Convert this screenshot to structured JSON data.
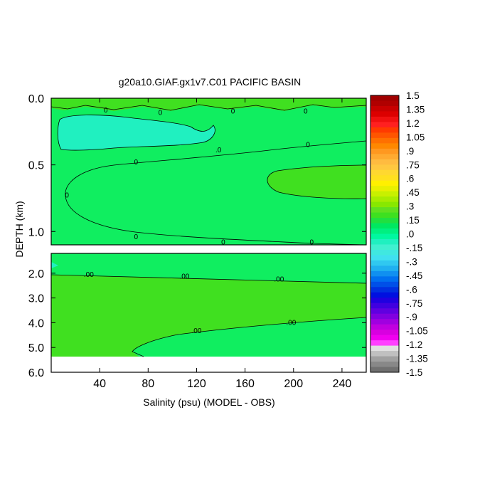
{
  "chart_data": {
    "type": "heatmap",
    "title": "g20a10.GIAF.gx1v7.C01 PACIFIC BASIN",
    "xlabel": "Salinity (psu) (MODEL - OBS)",
    "ylabel": "DEPTH (km)",
    "x_range": [
      0,
      260
    ],
    "x_ticks": [
      "40",
      "80",
      "120",
      "160",
      "200",
      "240"
    ],
    "x_tick_values": [
      40,
      80,
      120,
      160,
      200,
      240
    ],
    "upper_panel": {
      "y_range": [
        0.0,
        1.1
      ],
      "y_ticks": [
        "0.0",
        "0.5",
        "1.0"
      ],
      "y_tick_values": [
        0.0,
        0.5,
        1.0
      ],
      "contour_labels": [
        {
          "text": "0",
          "x": 45,
          "y": 0.09
        },
        {
          "text": "0",
          "x": 90,
          "y": 0.11
        },
        {
          "text": "0",
          "x": 150,
          "y": 0.1
        },
        {
          "text": "0",
          "x": 210,
          "y": 0.1
        },
        {
          "text": "0",
          "x": 212,
          "y": 0.35
        },
        {
          "text": ".0",
          "x": 138,
          "y": 0.39
        },
        {
          "text": "0",
          "x": 70,
          "y": 0.48
        },
        {
          "text": "0",
          "x": 13,
          "y": 0.73
        },
        {
          "text": "0",
          "x": 70,
          "y": 1.04
        },
        {
          "text": "0",
          "x": 142,
          "y": 1.08
        },
        {
          "text": "0",
          "x": 215,
          "y": 1.08
        }
      ]
    },
    "lower_panel": {
      "y_range": [
        1.2,
        6.0
      ],
      "y_ticks": [
        "2.0",
        "3.0",
        "4.0",
        "5.0",
        "6.0"
      ],
      "y_tick_values": [
        2.0,
        3.0,
        4.0,
        5.0,
        6.0
      ],
      "contour_labels": [
        {
          "text": ".00",
          "x": 31,
          "y": 2.06
        },
        {
          "text": ".00",
          "x": 110,
          "y": 2.13
        },
        {
          "text": ".00",
          "x": 188,
          "y": 2.25
        },
        {
          "text": ".00",
          "x": 120,
          "y": 4.34
        },
        {
          "text": ".00",
          "x": 198,
          "y": 4.0
        }
      ]
    },
    "colorbar": {
      "levels": [
        "1.5",
        "1.35",
        "1.2",
        "1.05",
        ".9",
        ".75",
        ".6",
        ".45",
        ".3",
        ".15",
        ".0",
        "-.15",
        "-.3",
        "-.45",
        "-.6",
        "-.75",
        "-.9",
        "-1.05",
        "-1.2",
        "-1.35",
        "-1.5"
      ],
      "colors": [
        "#a00000",
        "#b00000",
        "#c80000",
        "#dc0000",
        "#f01010",
        "#ff2020",
        "#ff3a00",
        "#ff5500",
        "#ff7000",
        "#ff8800",
        "#ff9820",
        "#ffaa30",
        "#ffbb40",
        "#ffc840",
        "#ffd830",
        "#ffe020",
        "#fff000",
        "#e8f000",
        "#c8f000",
        "#a8ec00",
        "#88e800",
        "#60e020",
        "#3ee020",
        "#20e040",
        "#00e860",
        "#00f080",
        "#00f8a0",
        "#20f0c0",
        "#40f0d0",
        "#40e8e0",
        "#40e0f0",
        "#30c8f0",
        "#20b0f0",
        "#1090f0",
        "#0070f0",
        "#0050e8",
        "#0030e0",
        "#0010e0",
        "#2000e0",
        "#4000e0",
        "#6000e0",
        "#8000e0",
        "#a000e0",
        "#c000e0",
        "#d800e0",
        "#f000f0",
        "#ff40ff",
        "#e0e0e0",
        "#c0c0c0",
        "#a0a0a0",
        "#888888",
        "#707070"
      ]
    }
  }
}
